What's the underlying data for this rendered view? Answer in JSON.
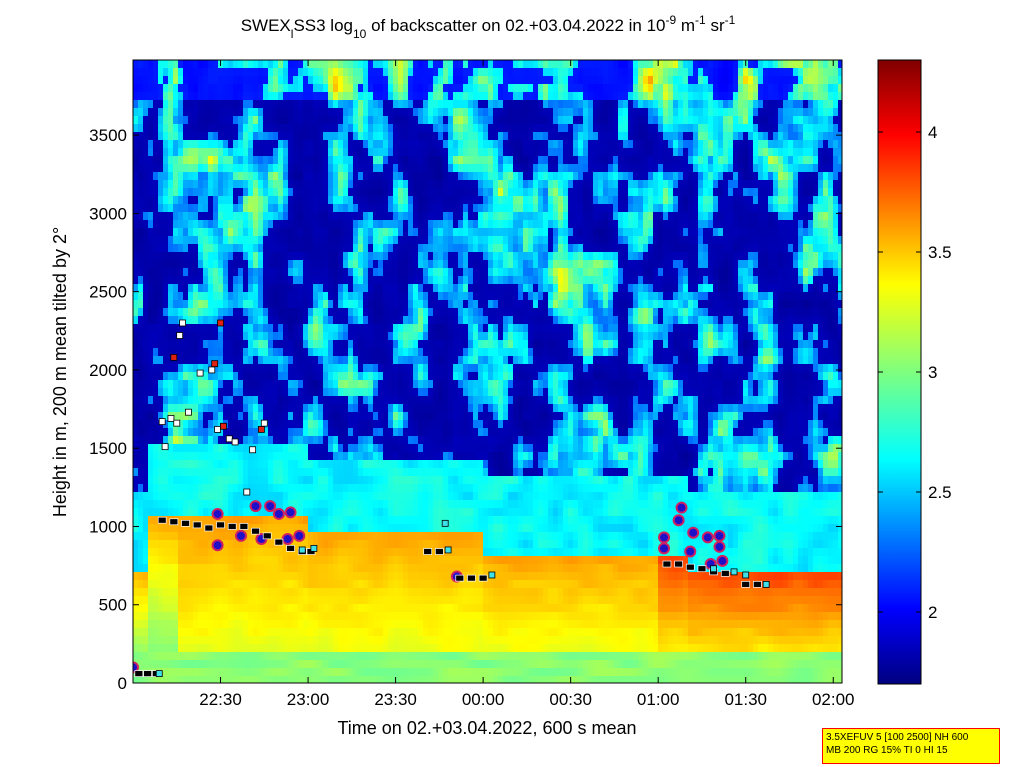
{
  "chart_data": {
    "type": "heatmap",
    "title": {
      "prefix": "SWEX",
      "sub1": "l",
      "mid1": "SS3 log",
      "sub2": "10",
      "mid2": " of backscatter on 02.+03.04.2022 in 10",
      "sup1": "-9",
      "mid3": " m",
      "sup2": "-1",
      "mid4": " sr",
      "sup3": "-1"
    },
    "xlabel": "Time on 02.+03.04.2022, 600 s mean",
    "ylabel": "Height in m, 200 m mean tilted by 2°",
    "x_ticks": [
      "22:30",
      "23:00",
      "23:30",
      "00:00",
      "00:30",
      "01:00",
      "01:30",
      "02:00"
    ],
    "x_tick_minutes": [
      30,
      60,
      90,
      120,
      150,
      180,
      210,
      240
    ],
    "xlim_minutes_after_22_00": [
      0,
      243
    ],
    "ylim": [
      0,
      3980
    ],
    "y_ticks": [
      0,
      500,
      1000,
      1500,
      2000,
      2500,
      3000,
      3500
    ],
    "colorbar": {
      "lim": [
        1.7,
        4.3
      ],
      "ticks": [
        2,
        2.5,
        3,
        3.5,
        4
      ],
      "colormap": "jet"
    },
    "boundary_layer_regions": [
      {
        "from_min": 5,
        "to_min": 60,
        "top": 1050
      },
      {
        "from_min": 60,
        "to_min": 120,
        "top": 950
      },
      {
        "from_min": 120,
        "to_min": 190,
        "top": 800
      },
      {
        "from_min": 190,
        "to_min": 243,
        "top": 700
      }
    ],
    "markers": {
      "cloud_base_black": [
        {
          "t": 2,
          "h": 60
        },
        {
          "t": 5,
          "h": 60
        },
        {
          "t": 8,
          "h": 60
        },
        {
          "t": 10,
          "h": 1040
        },
        {
          "t": 14,
          "h": 1030
        },
        {
          "t": 18,
          "h": 1020
        },
        {
          "t": 22,
          "h": 1010
        },
        {
          "t": 26,
          "h": 990
        },
        {
          "t": 30,
          "h": 1010
        },
        {
          "t": 34,
          "h": 1000
        },
        {
          "t": 38,
          "h": 1000
        },
        {
          "t": 42,
          "h": 970
        },
        {
          "t": 46,
          "h": 940
        },
        {
          "t": 50,
          "h": 900
        },
        {
          "t": 54,
          "h": 860
        },
        {
          "t": 58,
          "h": 840
        },
        {
          "t": 61,
          "h": 840
        },
        {
          "t": 101,
          "h": 840
        },
        {
          "t": 105,
          "h": 840
        },
        {
          "t": 112,
          "h": 670
        },
        {
          "t": 116,
          "h": 670
        },
        {
          "t": 120,
          "h": 670
        },
        {
          "t": 183,
          "h": 760
        },
        {
          "t": 187,
          "h": 760
        },
        {
          "t": 191,
          "h": 740
        },
        {
          "t": 195,
          "h": 730
        },
        {
          "t": 199,
          "h": 710
        },
        {
          "t": 203,
          "h": 700
        },
        {
          "t": 210,
          "h": 630
        },
        {
          "t": 214,
          "h": 630
        }
      ],
      "cyan_squares": [
        {
          "t": 9,
          "h": 60
        },
        {
          "t": 58,
          "h": 850
        },
        {
          "t": 62,
          "h": 860
        },
        {
          "t": 108,
          "h": 850
        },
        {
          "t": 123,
          "h": 690
        },
        {
          "t": 199,
          "h": 730
        },
        {
          "t": 206,
          "h": 710
        },
        {
          "t": 210,
          "h": 690
        },
        {
          "t": 217,
          "h": 630
        },
        {
          "t": 107,
          "h": 1020
        }
      ],
      "white_squares": [
        {
          "t": 17,
          "h": 2300
        },
        {
          "t": 16,
          "h": 2220
        },
        {
          "t": 19,
          "h": 1730
        },
        {
          "t": 10,
          "h": 1670
        },
        {
          "t": 13,
          "h": 1690
        },
        {
          "t": 15,
          "h": 1660
        },
        {
          "t": 11,
          "h": 1510
        },
        {
          "t": 23,
          "h": 1980
        },
        {
          "t": 27,
          "h": 2000
        },
        {
          "t": 29,
          "h": 1620
        },
        {
          "t": 33,
          "h": 1560
        },
        {
          "t": 35,
          "h": 1540
        },
        {
          "t": 41,
          "h": 1490
        },
        {
          "t": 45,
          "h": 1660
        },
        {
          "t": 39,
          "h": 1220
        }
      ],
      "red_squares": [
        {
          "t": 30,
          "h": 2300
        },
        {
          "t": 14,
          "h": 2080
        },
        {
          "t": 28,
          "h": 2040
        },
        {
          "t": 31,
          "h": 1640
        },
        {
          "t": 44,
          "h": 1620
        }
      ],
      "precip_circles": [
        {
          "t": 0,
          "h": 100
        },
        {
          "t": 29,
          "h": 1080
        },
        {
          "t": 29,
          "h": 880
        },
        {
          "t": 37,
          "h": 940
        },
        {
          "t": 42,
          "h": 1130
        },
        {
          "t": 47,
          "h": 1130
        },
        {
          "t": 50,
          "h": 1080
        },
        {
          "t": 54,
          "h": 1090
        },
        {
          "t": 44,
          "h": 920
        },
        {
          "t": 53,
          "h": 920
        },
        {
          "t": 57,
          "h": 940
        },
        {
          "t": 111,
          "h": 680
        },
        {
          "t": 182,
          "h": 930
        },
        {
          "t": 182,
          "h": 860
        },
        {
          "t": 187,
          "h": 1040
        },
        {
          "t": 188,
          "h": 1120
        },
        {
          "t": 192,
          "h": 960
        },
        {
          "t": 191,
          "h": 840
        },
        {
          "t": 197,
          "h": 930
        },
        {
          "t": 201,
          "h": 940
        },
        {
          "t": 201,
          "h": 870
        },
        {
          "t": 198,
          "h": 760
        },
        {
          "t": 202,
          "h": 780
        }
      ]
    }
  },
  "info_box": {
    "line1": "3.5XEFUV 5 [100 2500] NH 600",
    "line2": "MB 200 RG 15% TI 0 HI 15"
  }
}
